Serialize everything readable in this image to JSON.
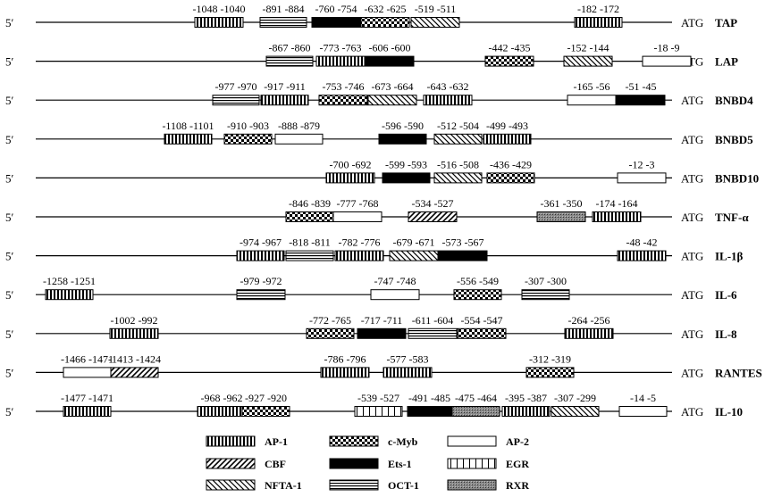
{
  "five_prime_label": "5′",
  "atg_label": "ATG",
  "box_types": {
    "AP-1": "vstripe",
    "CBF": "diag",
    "NFTA-1": "adiag",
    "c-Myb": "check",
    "Ets-1": "solid",
    "OCT-1": "hline",
    "AP-2": "open",
    "EGR": "grid",
    "RXR": "dots"
  },
  "genes": [
    {
      "name": "TAP",
      "boxes": [
        {
          "type": "AP-1",
          "label": "-1048 -1040"
        },
        {
          "type": "OCT-1",
          "label": "-891 -884"
        },
        {
          "type": "Ets-1",
          "label": "-760 -754"
        },
        {
          "type": "c-Myb",
          "label": "-632 -625"
        },
        {
          "type": "NFTA-1",
          "label": "-519 -511"
        },
        {
          "type": "AP-1",
          "label": "-182 -172"
        }
      ]
    },
    {
      "name": "LAP",
      "boxes": [
        {
          "type": "OCT-1",
          "label": "-867 -860"
        },
        {
          "type": "AP-1",
          "label": "-773 -763"
        },
        {
          "type": "Ets-1",
          "label": "-606 -600"
        },
        {
          "type": "c-Myb",
          "label": "-442 -435"
        },
        {
          "type": "NFTA-1",
          "label": "-152 -144"
        },
        {
          "type": "AP-2",
          "label": "-18 -9"
        }
      ]
    },
    {
      "name": "BNBD4",
      "boxes": [
        {
          "type": "OCT-1",
          "label": "-977 -970"
        },
        {
          "type": "AP-1",
          "label": "-917 -911"
        },
        {
          "type": "c-Myb",
          "label": "-753 -746"
        },
        {
          "type": "NFTA-1",
          "label": "-673 -664"
        },
        {
          "type": "AP-1",
          "label": "-643 -632"
        },
        {
          "type": "AP-2",
          "label": "-165 -56"
        },
        {
          "type": "Ets-1",
          "label": "-51 -45"
        }
      ]
    },
    {
      "name": "BNBD5",
      "boxes": [
        {
          "type": "AP-1",
          "label": "-1108 -1101"
        },
        {
          "type": "c-Myb",
          "label": "-910 -903"
        },
        {
          "type": "AP-2",
          "label": "-888 -879"
        },
        {
          "type": "Ets-1",
          "label": "-596 -590"
        },
        {
          "type": "NFTA-1",
          "label": "-512 -504"
        },
        {
          "type": "AP-1",
          "label": "-499 -493"
        }
      ]
    },
    {
      "name": "BNBD10",
      "boxes": [
        {
          "type": "AP-1",
          "label": "-700 -692"
        },
        {
          "type": "Ets-1",
          "label": "-599 -593"
        },
        {
          "type": "NFTA-1",
          "label": "-516 -508"
        },
        {
          "type": "c-Myb",
          "label": "-436 -429"
        },
        {
          "type": "AP-2",
          "label": "-12    -3"
        }
      ]
    },
    {
      "name": "TNF-α",
      "boxes": [
        {
          "type": "c-Myb",
          "label": "-846 -839"
        },
        {
          "type": "AP-2",
          "label": "-777 -768"
        },
        {
          "type": "CBF",
          "label": "-534 -527"
        },
        {
          "type": "RXR",
          "label": "-361 -350"
        },
        {
          "type": "AP-1",
          "label": "-174 -164"
        }
      ]
    },
    {
      "name": "IL-1β",
      "boxes": [
        {
          "type": "AP-1",
          "label": "-974 -967"
        },
        {
          "type": "OCT-1",
          "label": "-818 -811"
        },
        {
          "type": "AP-1",
          "label": "-782 -776"
        },
        {
          "type": "NFTA-1",
          "label": "-679 -671"
        },
        {
          "type": "Ets-1",
          "label": "-573 -567"
        },
        {
          "type": "AP-1",
          "label": "-48    -42"
        }
      ]
    },
    {
      "name": "IL-6",
      "boxes": [
        {
          "type": "AP-1",
          "label": "-1258 -1251"
        },
        {
          "type": "OCT-1",
          "label": "-979 -972"
        },
        {
          "type": "AP-2",
          "label": "-747 -748"
        },
        {
          "type": "c-Myb",
          "label": "-556 -549"
        },
        {
          "type": "OCT-1",
          "label": "-307 -300"
        }
      ]
    },
    {
      "name": "IL-8",
      "boxes": [
        {
          "type": "AP-1",
          "label": "-1002 -992"
        },
        {
          "type": "c-Myb",
          "label": "-772 -765"
        },
        {
          "type": "Ets-1",
          "label": "-717 -711"
        },
        {
          "type": "OCT-1",
          "label": "-611 -604"
        },
        {
          "type": "c-Myb",
          "label": "-554 -547"
        },
        {
          "type": "AP-1",
          "label": "-264 -256"
        }
      ]
    },
    {
      "name": "RANTES",
      "boxes": [
        {
          "type": "AP-2",
          "label": "-1466 -1471"
        },
        {
          "type": "CBF",
          "label": "-1413 -1424"
        },
        {
          "type": "AP-1",
          "label": "-786 -796"
        },
        {
          "type": "AP-1",
          "label": "-577 -583"
        },
        {
          "type": "c-Myb",
          "label": "-312 -319"
        }
      ]
    },
    {
      "name": "IL-10",
      "boxes": [
        {
          "type": "AP-1",
          "label": "-1477 -1471"
        },
        {
          "type": "AP-1",
          "label": "-968 -962"
        },
        {
          "type": "c-Myb",
          "label": "-927 -920"
        },
        {
          "type": "EGR",
          "label": "-539 -527"
        },
        {
          "type": "Ets-1",
          "label": "-491 -485"
        },
        {
          "type": "RXR",
          "label": "-475 -464"
        },
        {
          "type": "AP-1",
          "label": "-395 -387"
        },
        {
          "type": "NFTA-1",
          "label": "-307 -299"
        },
        {
          "type": "AP-2",
          "label": "-14    -5"
        }
      ]
    }
  ],
  "legend": [
    {
      "type": "AP-1",
      "label": "AP-1"
    },
    {
      "type": "c-Myb",
      "label": "c-Myb"
    },
    {
      "type": "AP-2",
      "label": "AP-2"
    },
    {
      "type": "CBF",
      "label": "CBF"
    },
    {
      "type": "Ets-1",
      "label": "Ets-1"
    },
    {
      "type": "EGR",
      "label": "EGR"
    },
    {
      "type": "NFTA-1",
      "label": "NFTA-1"
    },
    {
      "type": "OCT-1",
      "label": "OCT-1"
    },
    {
      "type": "RXR",
      "label": "RXR"
    }
  ]
}
